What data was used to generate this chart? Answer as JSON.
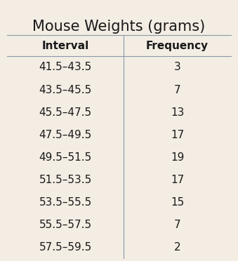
{
  "title": "Mouse Weights (grams)",
  "col_headers": [
    "Interval",
    "Frequency"
  ],
  "intervals": [
    "41.5–43.5",
    "43.5–45.5",
    "45.5–47.5",
    "47.5–49.5",
    "49.5–51.5",
    "51.5–53.5",
    "53.5–55.5",
    "55.5–57.5",
    "57.5–59.5"
  ],
  "frequencies": [
    3,
    7,
    13,
    17,
    19,
    17,
    15,
    7,
    2
  ],
  "background_color": "#f4ede4",
  "title_fontsize": 15,
  "header_fontsize": 11,
  "data_fontsize": 11,
  "line_color": "#8899aa",
  "text_color": "#1a1a1a"
}
